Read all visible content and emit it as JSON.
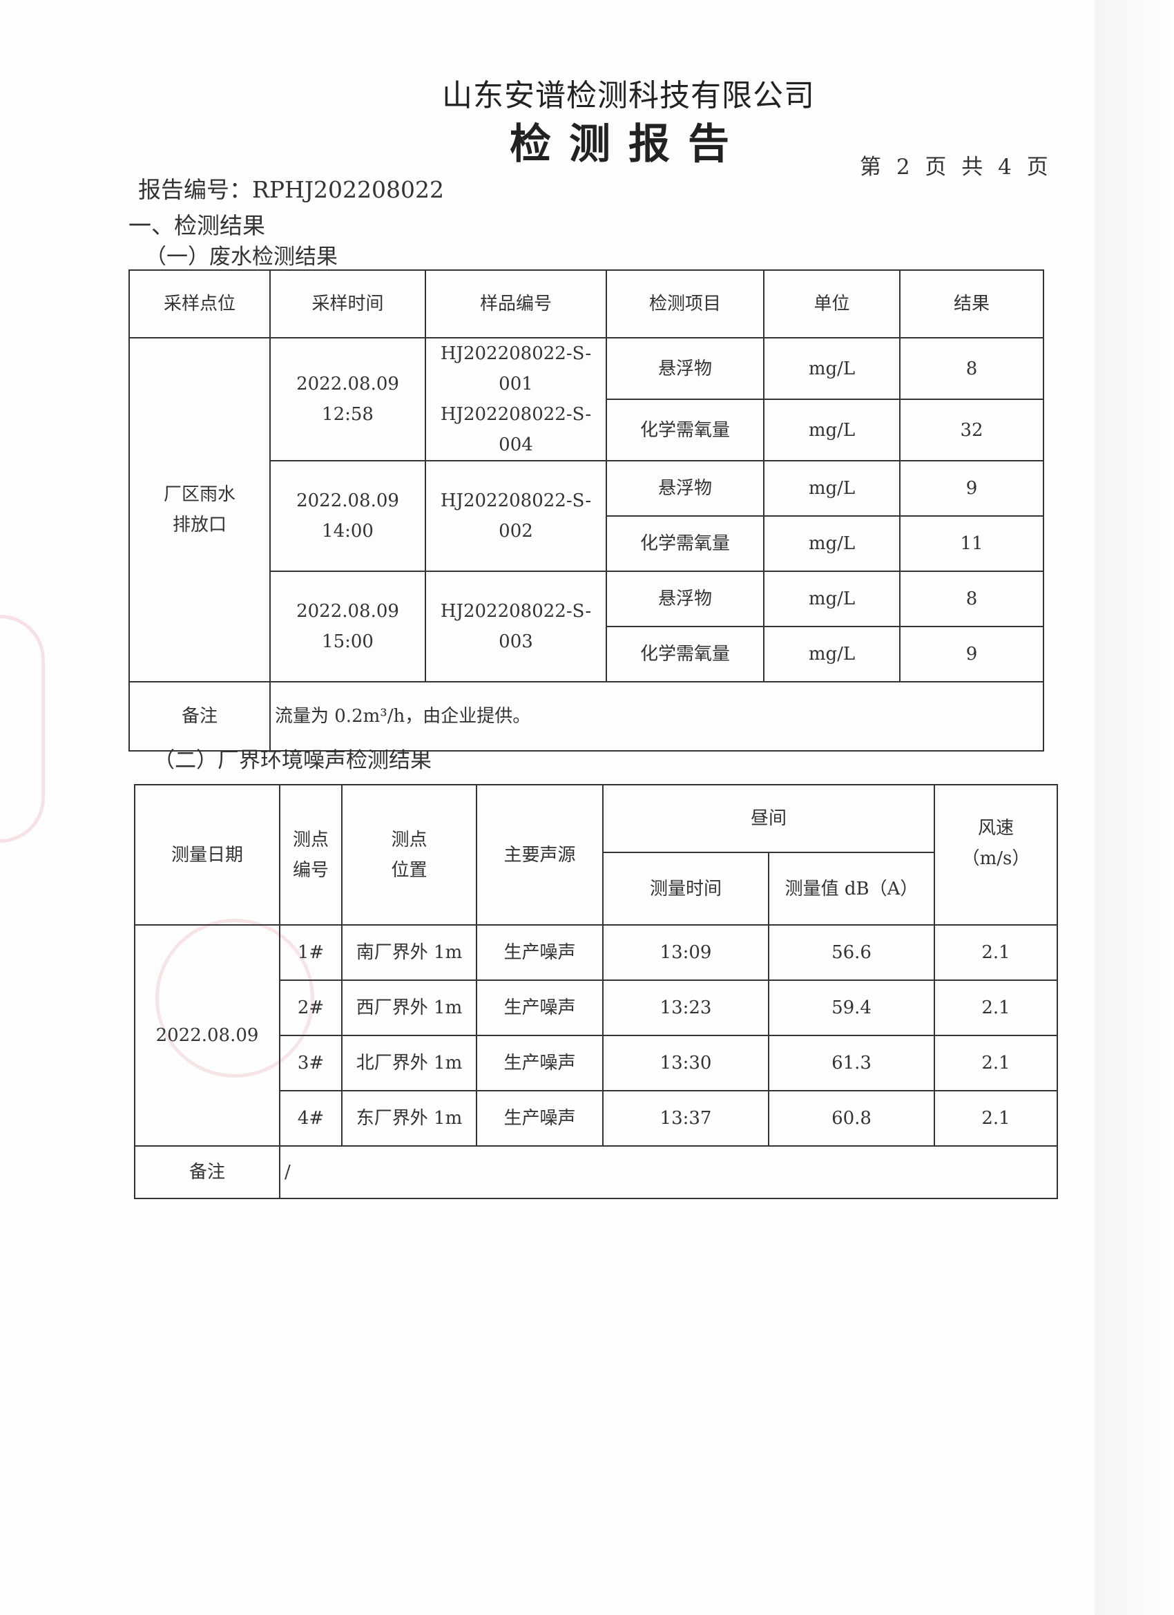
{
  "header": {
    "company": "山东安谱检测科技有限公司",
    "title": "检测报告",
    "page_info": "第 2 页 共 4 页",
    "report_no": "报告编号：RPHJ202208022"
  },
  "section_main": "一、检测结果",
  "wastewater": {
    "heading": "（一）废水检测结果",
    "columns": [
      "采样点位",
      "采样时间",
      "样品编号",
      "检测项目",
      "单位",
      "结果"
    ],
    "location": "厂区雨水\n排放口",
    "groups": [
      {
        "time": "2022.08.09\n12:58",
        "sample": "HJ202208022-S-001\nHJ202208022-S-004",
        "items": [
          {
            "item": "悬浮物",
            "unit": "mg/L",
            "result": "8"
          },
          {
            "item": "化学需氧量",
            "unit": "mg/L",
            "result": "32"
          }
        ]
      },
      {
        "time": "2022.08.09\n14:00",
        "sample": "HJ202208022-S-002",
        "items": [
          {
            "item": "悬浮物",
            "unit": "mg/L",
            "result": "9"
          },
          {
            "item": "化学需氧量",
            "unit": "mg/L",
            "result": "11"
          }
        ]
      },
      {
        "time": "2022.08.09\n15:00",
        "sample": "HJ202208022-S-003",
        "items": [
          {
            "item": "悬浮物",
            "unit": "mg/L",
            "result": "8"
          },
          {
            "item": "化学需氧量",
            "unit": "mg/L",
            "result": "9"
          }
        ]
      }
    ],
    "remark_label": "备注",
    "remark": "流量为 0.2m³/h，由企业提供。"
  },
  "noise": {
    "heading": "（二）厂界环境噪声检测结果",
    "columns": {
      "date": "测量日期",
      "point_no": "测点\n编号",
      "point_loc": "测点\n位置",
      "source": "主要声源",
      "daytime": "昼间",
      "time": "测量时间",
      "value": "测量值 dB（A）",
      "wind": "风速\n（m/s）"
    },
    "date": "2022.08.09",
    "rows": [
      {
        "no": "1#",
        "loc": "南厂界外 1m",
        "source": "生产噪声",
        "time": "13:09",
        "value": "56.6",
        "wind": "2.1"
      },
      {
        "no": "2#",
        "loc": "西厂界外 1m",
        "source": "生产噪声",
        "time": "13:23",
        "value": "59.4",
        "wind": "2.1"
      },
      {
        "no": "3#",
        "loc": "北厂界外 1m",
        "source": "生产噪声",
        "time": "13:30",
        "value": "61.3",
        "wind": "2.1"
      },
      {
        "no": "4#",
        "loc": "东厂界外 1m",
        "source": "生产噪声",
        "time": "13:37",
        "value": "60.8",
        "wind": "2.1"
      }
    ],
    "remark_label": "备注",
    "remark": "/"
  }
}
